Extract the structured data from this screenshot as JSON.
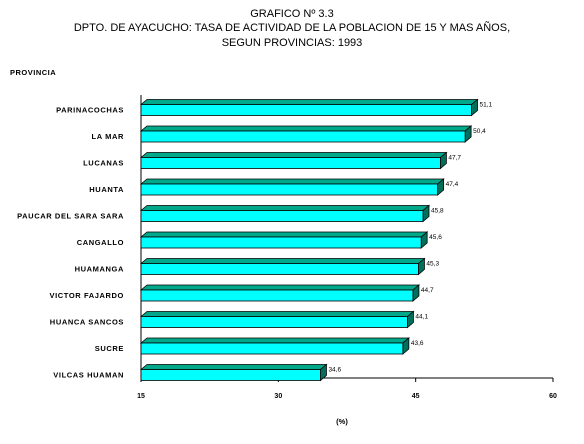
{
  "chart_data": {
    "type": "bar",
    "orientation": "horizontal",
    "title": "GRAFICO Nº 3.3",
    "subtitle": "DPTO. DE AYACUCHO: TASA DE ACTIVIDAD DE LA POBLACION DE 15 Y MAS AÑOS,",
    "subtitle2": "SEGUN PROVINCIAS: 1993",
    "ylabel": "PROVINCIA",
    "xlabel": "(%)",
    "categories": [
      "PARINACOCHAS",
      "LA MAR",
      "LUCANAS",
      "HUANTA",
      "PAUCAR DEL SARA SARA",
      "CANGALLO",
      "HUAMANGA",
      "VICTOR FAJARDO",
      "HUANCA SANCOS",
      "SUCRE",
      "VILCAS HUAMAN"
    ],
    "values": [
      51.1,
      50.4,
      47.7,
      47.4,
      45.8,
      45.6,
      45.3,
      44.7,
      44.1,
      43.6,
      34.6
    ],
    "value_labels": [
      "51,1",
      "50,4",
      "47,7",
      "47,4",
      "45,8",
      "45,6",
      "45,3",
      "44,7",
      "44,1",
      "43,6",
      "34,6"
    ],
    "xlim": [
      15,
      60
    ],
    "xticks": [
      "15",
      "30",
      "45",
      "60"
    ],
    "grid": false,
    "colors": {
      "bar_front": "#00ffff",
      "bar_top": "#00a88a",
      "bar_side": "#006f5c",
      "outline": "#000000"
    }
  }
}
